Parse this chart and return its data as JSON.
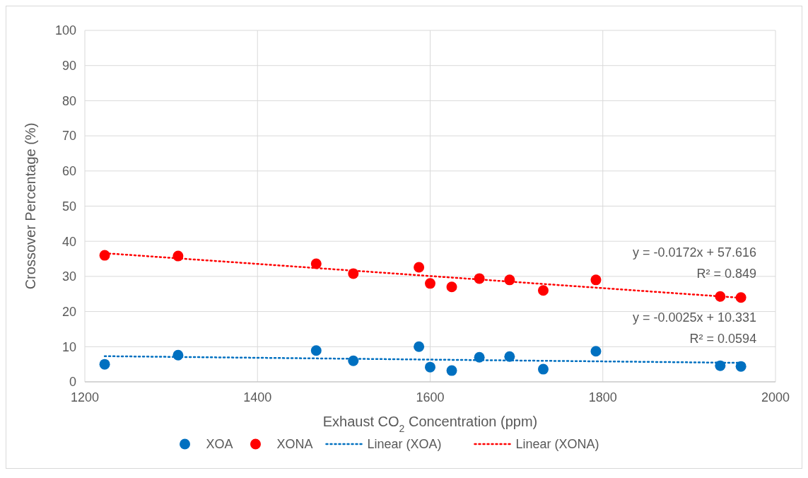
{
  "chart_data": {
    "type": "scatter",
    "xlabel": "Exhaust CO$_{2}$ Concentration (ppm)",
    "ylabel": "Crossover Percentage (%)",
    "xlim": [
      1200,
      2000
    ],
    "xticks": [
      1200,
      1400,
      1600,
      1800,
      2000
    ],
    "ylim": [
      0,
      100
    ],
    "yticks": [
      0,
      10,
      20,
      30,
      40,
      50,
      60,
      70,
      80,
      90,
      100
    ],
    "grid": true,
    "legend": "bottom",
    "marker": "circle",
    "series": [
      {
        "name": "XOA",
        "color": "#0070c0",
        "x": [
          1223,
          1308,
          1468,
          1511,
          1587,
          1600,
          1625,
          1657,
          1692,
          1731,
          1792,
          1936,
          1960
        ],
        "values": [
          5.0,
          7.6,
          8.9,
          6.0,
          10.0,
          4.2,
          3.2,
          7.0,
          7.2,
          3.6,
          8.7,
          4.6,
          4.4
        ]
      },
      {
        "name": "XONA",
        "color": "#ff0000",
        "x": [
          1223,
          1308,
          1468,
          1511,
          1587,
          1600,
          1625,
          1657,
          1692,
          1731,
          1792,
          1936,
          1960
        ],
        "values": [
          36.0,
          35.8,
          33.6,
          30.8,
          32.6,
          28.0,
          27.0,
          29.4,
          29.0,
          26.0,
          29.0,
          24.3,
          24.0
        ]
      },
      {
        "name": "Linear (XOA)",
        "type": "line",
        "color": "#0070c0",
        "marker": "none",
        "line_style": "dotted",
        "x": [
          1223,
          1960
        ],
        "values": [
          7.3,
          5.4
        ]
      },
      {
        "name": "Linear (XONA)",
        "type": "line",
        "color": "#ff0000",
        "marker": "none",
        "line_style": "dotted",
        "x": [
          1223,
          1960
        ],
        "values": [
          36.6,
          23.9
        ]
      }
    ],
    "annotations": [
      "y = -0.0172x + 57.616",
      "R² = 0.849",
      "y = -0.0025x + 10.331",
      "R² = 0.0594"
    ]
  }
}
